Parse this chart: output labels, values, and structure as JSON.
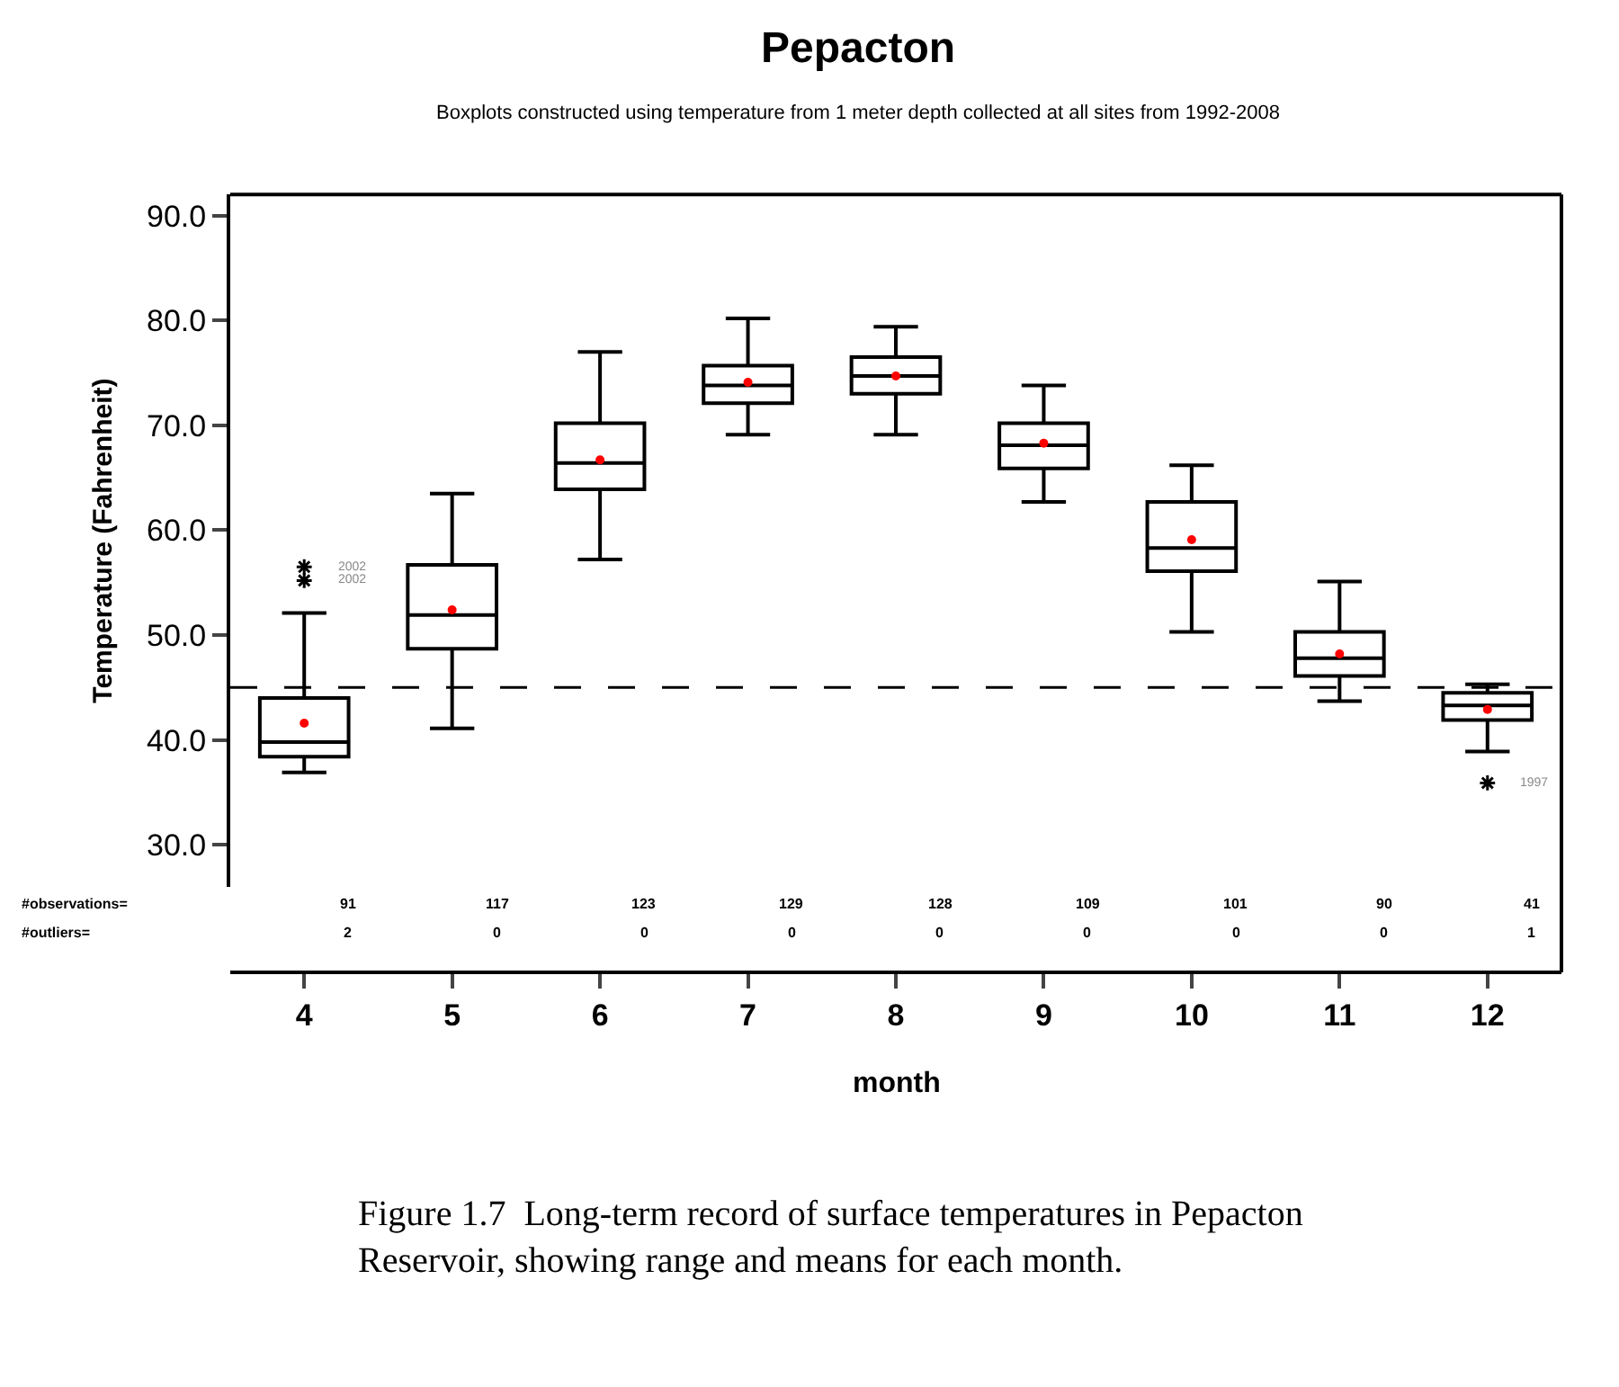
{
  "chart_data": {
    "type": "box",
    "title": "Pepacton",
    "subtitle": "Boxplots constructed using temperature from 1 meter depth collected at all sites from 1992-2008",
    "xlabel": "month",
    "ylabel": "Temperature (Fahrenheit)",
    "categories": [
      "4",
      "5",
      "6",
      "7",
      "8",
      "9",
      "10",
      "11",
      "12"
    ],
    "series": [
      {
        "color": "#000000",
        "boxes": [
          {
            "low": 36.9,
            "q1": 38.4,
            "median": 39.8,
            "q3": 44.0,
            "high": 52.1,
            "mean": 41.6,
            "outliers": [
              56.5,
              55.2
            ]
          },
          {
            "low": 41.1,
            "q1": 48.7,
            "median": 51.9,
            "q3": 56.7,
            "high": 63.5,
            "mean": 52.4
          },
          {
            "low": 57.2,
            "q1": 63.9,
            "median": 66.4,
            "q3": 70.2,
            "high": 77.0,
            "mean": 66.7
          },
          {
            "low": 69.1,
            "q1": 72.1,
            "median": 73.8,
            "q3": 75.7,
            "high": 80.2,
            "mean": 74.1
          },
          {
            "low": 69.1,
            "q1": 73.0,
            "median": 74.7,
            "q3": 76.5,
            "high": 79.4,
            "mean": 74.7
          },
          {
            "low": 62.7,
            "q1": 65.9,
            "median": 68.1,
            "q3": 70.2,
            "high": 73.8,
            "mean": 68.3
          },
          {
            "low": 50.3,
            "q1": 56.1,
            "median": 58.3,
            "q3": 62.7,
            "high": 66.2,
            "mean": 59.1
          },
          {
            "low": 43.7,
            "q1": 46.1,
            "median": 47.8,
            "q3": 50.3,
            "high": 55.1,
            "mean": 48.2
          },
          {
            "low": 38.9,
            "q1": 41.9,
            "median": 43.3,
            "q3": 44.5,
            "high": 45.3,
            "mean": 42.9,
            "outliers": [
              35.9
            ]
          }
        ]
      }
    ],
    "ylim": [
      26,
      92
    ],
    "yticks": [
      {
        "value": 30,
        "label": "30.0"
      },
      {
        "value": 40,
        "label": "40.0"
      },
      {
        "value": 50,
        "label": "50.0"
      },
      {
        "value": 60,
        "label": "60.0"
      },
      {
        "value": 70,
        "label": "70.0"
      },
      {
        "value": 80,
        "label": "80.0"
      },
      {
        "value": 90,
        "label": "90.0"
      }
    ],
    "ref_lines": [
      {
        "axis": "y",
        "value": 45,
        "line_style": "dashed",
        "color": "#000000"
      }
    ],
    "annotations": [
      "#observations=",
      "91",
      "117",
      "123",
      "129",
      "128",
      "109",
      "101",
      "90",
      "41",
      "#outliers=",
      "2",
      "0",
      "0",
      "0",
      "0",
      "0",
      "0",
      "0",
      "1",
      "2002",
      "2002",
      "1997",
      "Figure 1.7  Long-term record of surface temperatures in Pepacton Reservoir, showing range and means for each month."
    ]
  }
}
